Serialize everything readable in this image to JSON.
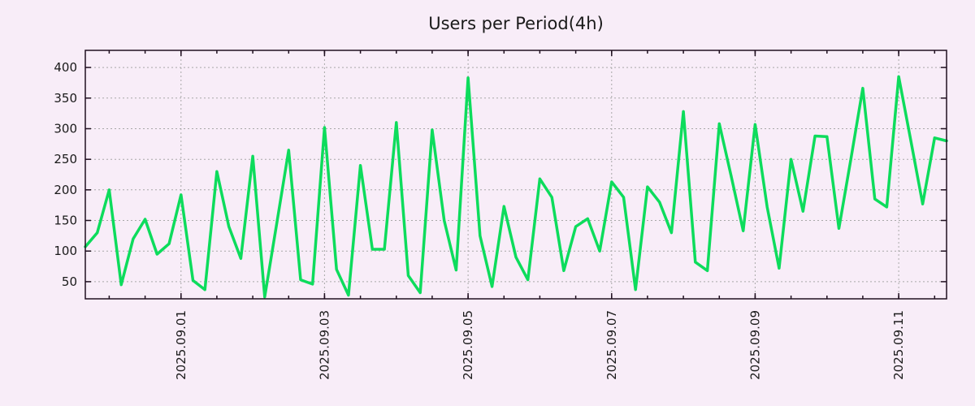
{
  "title": "Users per Period(4h)",
  "colors": {
    "background": "#f8edf8",
    "line": "#0ddc5c",
    "grid": "#a8a8a8",
    "frame": "#201020",
    "text": "#1a1a1a"
  },
  "chart_data": {
    "type": "line",
    "title": "Users per Period(4h)",
    "series_name": "users",
    "x_step": "4h",
    "x": [
      "2025-08-30 16:00",
      "2025-08-30 20:00",
      "2025-08-31 00:00",
      "2025-08-31 04:00",
      "2025-08-31 08:00",
      "2025-08-31 12:00",
      "2025-08-31 16:00",
      "2025-08-31 20:00",
      "2025-09-01 00:00",
      "2025-09-01 04:00",
      "2025-09-01 08:00",
      "2025-09-01 12:00",
      "2025-09-01 16:00",
      "2025-09-01 20:00",
      "2025-09-02 00:00",
      "2025-09-02 04:00",
      "2025-09-02 08:00",
      "2025-09-02 12:00",
      "2025-09-02 16:00",
      "2025-09-02 20:00",
      "2025-09-03 00:00",
      "2025-09-03 04:00",
      "2025-09-03 08:00",
      "2025-09-03 12:00",
      "2025-09-03 16:00",
      "2025-09-03 20:00",
      "2025-09-04 00:00",
      "2025-09-04 04:00",
      "2025-09-04 08:00",
      "2025-09-04 12:00",
      "2025-09-04 16:00",
      "2025-09-04 20:00",
      "2025-09-05 00:00",
      "2025-09-05 04:00",
      "2025-09-05 08:00",
      "2025-09-05 12:00",
      "2025-09-05 16:00",
      "2025-09-05 20:00",
      "2025-09-06 00:00",
      "2025-09-06 04:00",
      "2025-09-06 08:00",
      "2025-09-06 12:00",
      "2025-09-06 16:00",
      "2025-09-06 20:00",
      "2025-09-07 00:00",
      "2025-09-07 04:00",
      "2025-09-07 08:00",
      "2025-09-07 12:00",
      "2025-09-07 16:00",
      "2025-09-07 20:00",
      "2025-09-08 00:00",
      "2025-09-08 04:00",
      "2025-09-08 08:00",
      "2025-09-08 12:00",
      "2025-09-08 16:00",
      "2025-09-08 20:00",
      "2025-09-09 00:00",
      "2025-09-09 04:00",
      "2025-09-09 08:00",
      "2025-09-09 12:00",
      "2025-09-09 16:00",
      "2025-09-09 20:00",
      "2025-09-10 00:00",
      "2025-09-10 04:00",
      "2025-09-10 08:00",
      "2025-09-10 12:00",
      "2025-09-10 16:00",
      "2025-09-10 20:00",
      "2025-09-11 00:00",
      "2025-09-11 04:00",
      "2025-09-11 08:00",
      "2025-09-11 12:00",
      "2025-09-11 16:00"
    ],
    "values": [
      107,
      130,
      200,
      45,
      120,
      152,
      95,
      112,
      192,
      52,
      37,
      230,
      140,
      88,
      255,
      25,
      145,
      265,
      53,
      46,
      302,
      70,
      28,
      240,
      103,
      103,
      310,
      60,
      32,
      298,
      150,
      69,
      383,
      125,
      42,
      173,
      90,
      53,
      218,
      188,
      68,
      140,
      153,
      100,
      213,
      188,
      37,
      205,
      180,
      130,
      328,
      82,
      68,
      308,
      222,
      133,
      307,
      172,
      72,
      250,
      165,
      288,
      287,
      137,
      250,
      366,
      185,
      172,
      385,
      282,
      177,
      285,
      280
    ],
    "ylim": [
      22,
      428
    ],
    "yticks": [
      50,
      100,
      150,
      200,
      250,
      300,
      350,
      400
    ],
    "x_major_ticks": [
      {
        "label": "2025.09.01",
        "index": 8
      },
      {
        "label": "2025.09.03",
        "index": 20
      },
      {
        "label": "2025.09.05",
        "index": 32
      },
      {
        "label": "2025.09.07",
        "index": 44
      },
      {
        "label": "2025.09.09",
        "index": 56
      },
      {
        "label": "2025.09.11",
        "index": 68
      }
    ],
    "x_minor_tick_start_index": 2,
    "x_minor_tick_every_points": 3,
    "grid": "dashed",
    "legend": "none"
  }
}
